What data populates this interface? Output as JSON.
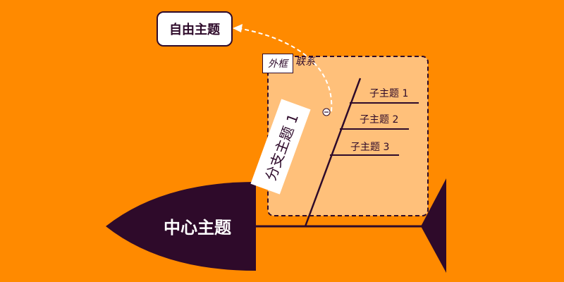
{
  "free_topic": {
    "label": "自由主题"
  },
  "boundary": {
    "tag": "外框"
  },
  "relationship": {
    "label": "联系"
  },
  "branch": {
    "label": "分支主题 1"
  },
  "subtopics": [
    {
      "label": "子主题 1"
    },
    {
      "label": "子主题 2"
    },
    {
      "label": "子主题 3"
    }
  ],
  "central_topic": {
    "label": "中心主题"
  },
  "colors": {
    "background": "#FF8A00",
    "boundary_fill": "#FFC07A",
    "dark": "#2E0A2A",
    "white": "#FFFFFF"
  }
}
